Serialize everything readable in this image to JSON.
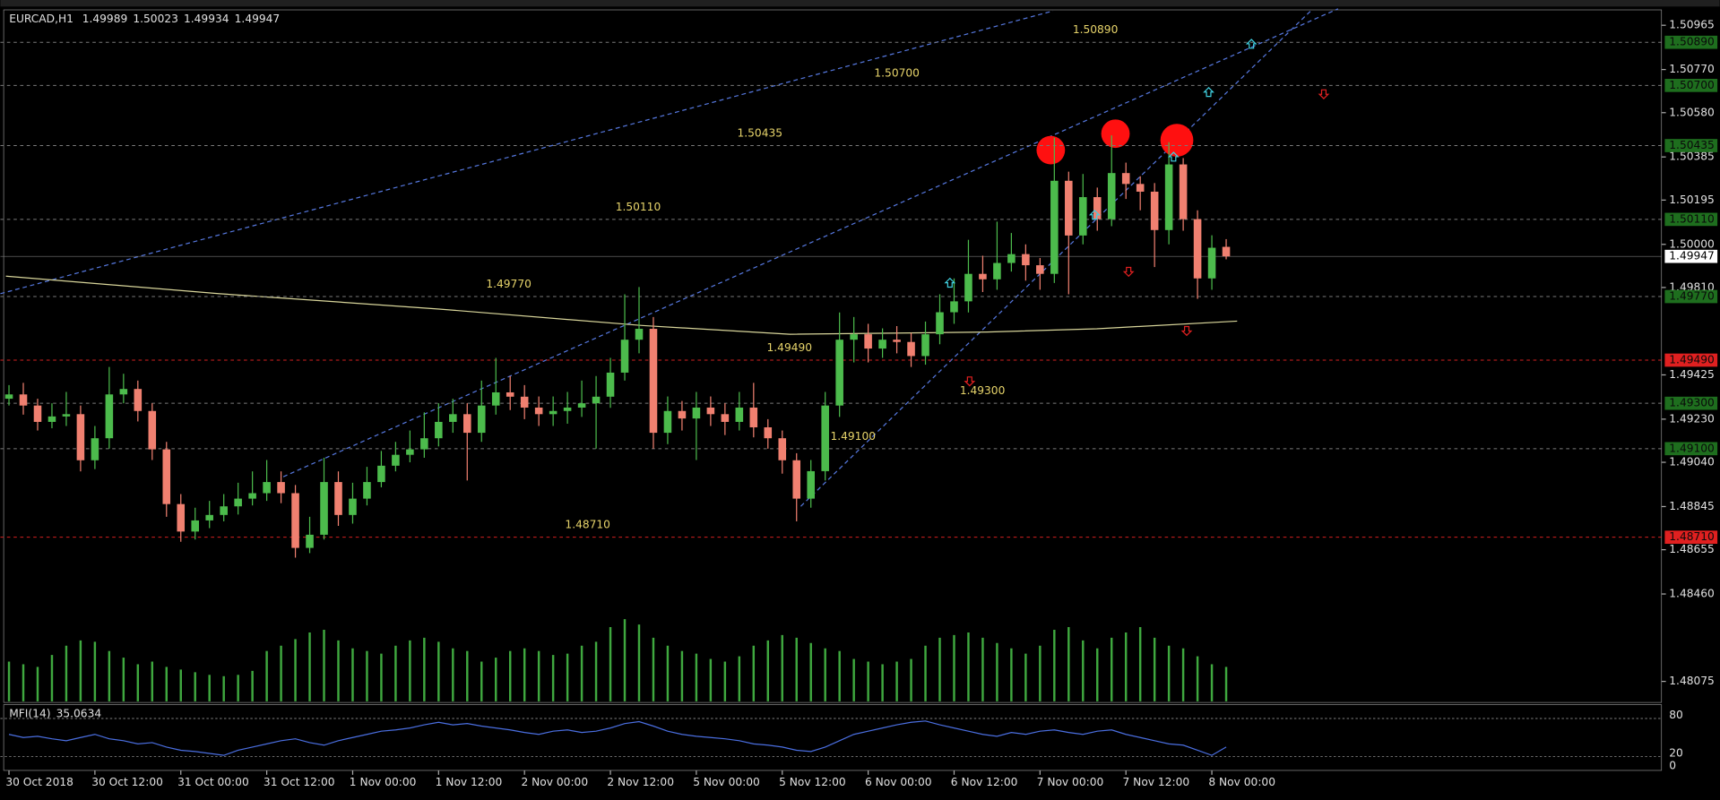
{
  "chart_data": {
    "type": "candlestick",
    "symbol": "EURCAD,H1",
    "open": [
      1.4932,
      1.49339,
      1.4929,
      1.49218,
      1.49242,
      1.49252,
      1.49049,
      1.49146,
      1.49339,
      1.49363,
      1.49266,
      1.49097,
      1.48856,
      1.48735,
      1.48784,
      1.48808,
      1.48846,
      1.4888,
      1.48904,
      1.48953,
      1.48904,
      1.48663,
      1.48721,
      1.48953,
      1.48808,
      1.4888,
      1.48953,
      1.49025,
      1.49073,
      1.49097,
      1.49146,
      1.49218,
      1.49252,
      1.4917,
      1.4929,
      1.49348,
      1.49329,
      1.49281,
      1.49252,
      1.49266,
      1.49281,
      1.493,
      1.49329,
      1.49435,
      1.4958,
      1.49628,
      1.4917,
      1.49266,
      1.49233,
      1.49281,
      1.49252,
      1.49218,
      1.49281,
      1.49194,
      1.49146,
      1.49049,
      1.4888,
      1.49001,
      1.4929,
      1.4958,
      1.49604,
      1.49541,
      1.4958,
      1.4957,
      1.49508,
      1.49604,
      1.49701,
      1.49749,
      1.4987,
      1.49846,
      1.49918,
      1.49957,
      1.49908,
      1.4987,
      1.5028,
      1.50039,
      1.50208,
      1.50111,
      1.50314,
      1.50266,
      1.50232,
      1.50063,
      1.50352,
      1.50111,
      1.4985,
      1.49989
    ],
    "high": [
      1.4938,
      1.4939,
      1.4932,
      1.493,
      1.4935,
      1.4929,
      1.492,
      1.4946,
      1.4943,
      1.494,
      1.493,
      1.4913,
      1.489,
      1.4884,
      1.4887,
      1.489,
      1.4895,
      1.49,
      1.4905,
      1.49,
      1.4894,
      1.488,
      1.4906,
      1.49,
      1.4895,
      1.4902,
      1.4909,
      1.4913,
      1.4918,
      1.4926,
      1.493,
      1.4932,
      1.493,
      1.494,
      1.495,
      1.4942,
      1.4938,
      1.4933,
      1.4933,
      1.4935,
      1.494,
      1.4942,
      1.495,
      1.4978,
      1.49812,
      1.4968,
      1.4933,
      1.4931,
      1.4935,
      1.4933,
      1.493,
      1.4935,
      1.4939,
      1.4923,
      1.4918,
      1.4908,
      1.4905,
      1.4935,
      1.497,
      1.4968,
      1.4965,
      1.4963,
      1.4964,
      1.4961,
      1.4966,
      1.4978,
      1.4985,
      1.5002,
      1.4995,
      1.501,
      1.5005,
      1.5,
      1.4994,
      1.5047,
      1.5032,
      1.5031,
      1.5025,
      1.5048,
      1.5036,
      1.503,
      1.5027,
      1.5045,
      1.5038,
      1.5015,
      1.5004,
      1.50023
    ],
    "low": [
      1.4929,
      1.4925,
      1.4918,
      1.4919,
      1.492,
      1.49,
      1.4901,
      1.491,
      1.493,
      1.4922,
      1.4905,
      1.488,
      1.4869,
      1.487,
      1.4875,
      1.4878,
      1.4881,
      1.4885,
      1.4887,
      1.4886,
      1.4862,
      1.4864,
      1.487,
      1.4876,
      1.4877,
      1.4885,
      1.4893,
      1.49,
      1.4904,
      1.4906,
      1.4911,
      1.4917,
      1.4896,
      1.4913,
      1.4925,
      1.4927,
      1.4923,
      1.492,
      1.492,
      1.4921,
      1.4924,
      1.491,
      1.4928,
      1.494,
      1.4952,
      1.491,
      1.4912,
      1.4918,
      1.4905,
      1.492,
      1.4916,
      1.4918,
      1.4915,
      1.491,
      1.4899,
      1.4878,
      1.4884,
      1.4896,
      1.4924,
      1.4948,
      1.4948,
      1.495,
      1.4952,
      1.4946,
      1.4947,
      1.4956,
      1.4965,
      1.497,
      1.4979,
      1.498,
      1.4988,
      1.4984,
      1.498,
      1.4983,
      1.4978,
      1.5,
      1.5006,
      1.5008,
      1.502,
      1.5015,
      1.499,
      1.5,
      1.5006,
      1.4976,
      1.498,
      1.49934
    ],
    "close": [
      1.49339,
      1.4929,
      1.49218,
      1.49242,
      1.49252,
      1.49049,
      1.49146,
      1.49339,
      1.49363,
      1.49266,
      1.49097,
      1.48856,
      1.48735,
      1.48784,
      1.48808,
      1.48846,
      1.4888,
      1.48904,
      1.48953,
      1.48904,
      1.48663,
      1.48721,
      1.48953,
      1.48808,
      1.4888,
      1.48953,
      1.49025,
      1.49073,
      1.49097,
      1.49146,
      1.49218,
      1.49252,
      1.4917,
      1.4929,
      1.49348,
      1.49329,
      1.49281,
      1.49252,
      1.49266,
      1.49281,
      1.493,
      1.49329,
      1.49435,
      1.4958,
      1.49628,
      1.4917,
      1.49266,
      1.49233,
      1.49281,
      1.49252,
      1.49218,
      1.49281,
      1.49194,
      1.49146,
      1.49049,
      1.4888,
      1.49001,
      1.4929,
      1.4958,
      1.49604,
      1.49541,
      1.4958,
      1.4957,
      1.49508,
      1.49604,
      1.49701,
      1.49749,
      1.4987,
      1.49846,
      1.49918,
      1.49957,
      1.49908,
      1.4987,
      1.5028,
      1.50039,
      1.50208,
      1.50111,
      1.50314,
      1.50266,
      1.50232,
      1.50063,
      1.50352,
      1.50111,
      1.4985,
      1.49985,
      1.49947
    ],
    "volume": [
      300,
      280,
      260,
      350,
      420,
      460,
      450,
      380,
      330,
      280,
      300,
      260,
      240,
      220,
      200,
      190,
      200,
      230,
      380,
      420,
      470,
      520,
      540,
      460,
      400,
      380,
      360,
      420,
      460,
      480,
      450,
      400,
      380,
      300,
      330,
      380,
      400,
      380,
      350,
      360,
      420,
      450,
      560,
      620,
      580,
      480,
      420,
      380,
      360,
      320,
      300,
      340,
      420,
      460,
      500,
      480,
      440,
      400,
      380,
      320,
      300,
      280,
      300,
      320,
      420,
      480,
      500,
      520,
      480,
      440,
      400,
      360,
      420,
      540,
      560,
      460,
      400,
      480,
      520,
      560,
      480,
      420,
      400,
      340,
      280,
      260
    ],
    "up_color": "#4cbb4c",
    "down_color": "#f08070",
    "volume_color": "#3fa83f",
    "xlim": [
      -0.6,
      115.4
    ],
    "xticks": [
      {
        "value": 0,
        "label": "30 Oct 2018"
      },
      {
        "value": 6,
        "label": "30 Oct 12:00"
      },
      {
        "value": 12,
        "label": "31 Oct 00:00"
      },
      {
        "value": 18,
        "label": "31 Oct 12:00"
      },
      {
        "value": 24,
        "label": "1 Nov 00:00"
      },
      {
        "value": 30,
        "label": "1 Nov 12:00"
      },
      {
        "value": 36,
        "label": "2 Nov 00:00"
      },
      {
        "value": 42,
        "label": "2 Nov 12:00"
      },
      {
        "value": 48,
        "label": "5 Nov 00:00"
      },
      {
        "value": 54,
        "label": "5 Nov 12:00"
      },
      {
        "value": 60,
        "label": "6 Nov 00:00"
      },
      {
        "value": 66,
        "label": "6 Nov 12:00"
      },
      {
        "value": 72,
        "label": "7 Nov 00:00"
      },
      {
        "value": 78,
        "label": "7 Nov 12:00"
      },
      {
        "value": 84,
        "label": "8 Nov 00:00"
      }
    ],
    "ylim": [
      1.47987,
      1.51028
    ],
    "yticks": [
      {
        "value": 1.50965,
        "label": "1.50965"
      },
      {
        "value": 1.5077,
        "label": "1.50770"
      },
      {
        "value": 1.5058,
        "label": "1.50580"
      },
      {
        "value": 1.50385,
        "label": "1.50385"
      },
      {
        "value": 1.50195,
        "label": "1.50195"
      },
      {
        "value": 1.5,
        "label": "1.50000"
      },
      {
        "value": 1.4981,
        "label": "1.49810"
      },
      {
        "value": 1.49425,
        "label": "1.49425"
      },
      {
        "value": 1.4923,
        "label": "1.49230"
      },
      {
        "value": 1.4904,
        "label": "1.49040"
      },
      {
        "value": 1.48845,
        "label": "1.48845"
      },
      {
        "value": 1.48655,
        "label": "1.48655"
      },
      {
        "value": 1.4846,
        "label": "1.48460"
      },
      {
        "value": 1.48075,
        "label": "1.48075"
      }
    ],
    "levels": [
      {
        "value": 1.5089,
        "label": "1.50890",
        "color": "#7a7a7a"
      },
      {
        "value": 1.507,
        "label": "1.50700",
        "color": "#7a7a7a"
      },
      {
        "value": 1.50435,
        "label": "1.50435",
        "color": "#7a7a7a"
      },
      {
        "value": 1.5011,
        "label": "1.50110",
        "color": "#7a7a7a"
      },
      {
        "value": 1.4977,
        "label": "1.49770",
        "color": "#7a7a7a"
      },
      {
        "value": 1.4949,
        "label": "1.49490",
        "color": "#d42020"
      },
      {
        "value": 1.493,
        "label": "1.49300",
        "color": "#7a7a7a"
      },
      {
        "value": 1.491,
        "label": "1.49100",
        "color": "#7a7a7a"
      },
      {
        "value": 1.4871,
        "label": "1.48710",
        "color": "#d42020"
      }
    ],
    "mfi": {
      "name": "MFI(14)",
      "color": "#4a6ee0",
      "ylim": [
        0,
        100
      ],
      "yticks": [
        80,
        20,
        0
      ],
      "values": [
        55,
        50,
        52,
        48,
        45,
        50,
        55,
        48,
        45,
        40,
        42,
        35,
        30,
        28,
        25,
        22,
        30,
        35,
        40,
        45,
        48,
        42,
        38,
        45,
        50,
        55,
        60,
        62,
        65,
        70,
        74,
        70,
        72,
        68,
        65,
        62,
        58,
        55,
        60,
        62,
        58,
        60,
        65,
        72,
        75,
        68,
        60,
        55,
        52,
        50,
        48,
        45,
        40,
        38,
        35,
        30,
        28,
        35,
        45,
        55,
        60,
        65,
        70,
        74,
        76,
        70,
        65,
        60,
        55,
        52,
        58,
        55,
        60,
        62,
        58,
        55,
        60,
        62,
        55,
        50,
        45,
        40,
        38,
        30,
        22,
        35.0634
      ]
    }
  }
}
